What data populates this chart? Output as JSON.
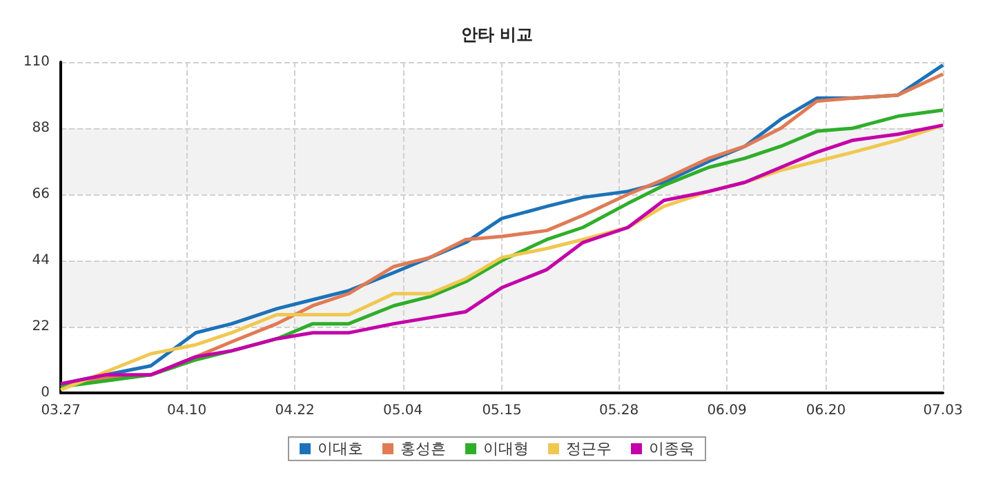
{
  "chart_data": {
    "type": "line",
    "title": "안타 비교",
    "x": [
      "--03-27",
      "--04-01",
      "--04-06",
      "--04-11",
      "--04-15",
      "--04-20",
      "--04-24",
      "--04-28",
      "--05-03",
      "--05-07",
      "--05-11",
      "--05-15",
      "--05-20",
      "--05-24",
      "--05-29",
      "--06-02",
      "--06-07",
      "--06-11",
      "--06-15",
      "--06-19",
      "--06-23",
      "--06-28",
      "--07-03"
    ],
    "series": [
      {
        "name": "이대호",
        "color": "#1c72b8",
        "values": [
          3,
          6,
          9,
          20,
          23,
          28,
          31,
          34,
          40,
          45,
          50,
          58,
          62,
          65,
          67,
          70,
          77,
          82,
          91,
          98,
          98,
          99,
          109
        ]
      },
      {
        "name": "홍성흔",
        "color": "#e07b55",
        "values": [
          2,
          5,
          6,
          12,
          17,
          23,
          29,
          33,
          42,
          45,
          51,
          52,
          54,
          59,
          66,
          71,
          78,
          82,
          88,
          97,
          98,
          99,
          106
        ]
      },
      {
        "name": "이대형",
        "color": "#2fae2a",
        "values": [
          2,
          4,
          6,
          11,
          14,
          18,
          23,
          23,
          29,
          32,
          37,
          44,
          51,
          55,
          63,
          69,
          75,
          78,
          82,
          87,
          88,
          92,
          94
        ]
      },
      {
        "name": "정근우",
        "color": "#f0c850",
        "values": [
          1,
          7,
          13,
          16,
          20,
          26,
          26,
          26,
          33,
          33,
          38,
          45,
          48,
          51,
          55,
          62,
          67,
          70,
          74,
          77,
          80,
          84,
          89
        ]
      },
      {
        "name": "이종욱",
        "color": "#c400a8",
        "values": [
          3,
          6,
          6,
          12,
          14,
          18,
          20,
          20,
          23,
          25,
          27,
          35,
          41,
          50,
          55,
          64,
          67,
          70,
          75,
          80,
          84,
          86,
          89
        ]
      }
    ],
    "xlim": [
      "--03-27",
      "--07-03"
    ],
    "xticks": [
      {
        "value": "--03-27",
        "label": "03.27"
      },
      {
        "value": "--04-10",
        "label": "04.10"
      },
      {
        "value": "--04-22",
        "label": "04.22"
      },
      {
        "value": "--05-04",
        "label": "05.04"
      },
      {
        "value": "--05-15",
        "label": "05.15"
      },
      {
        "value": "--05-28",
        "label": "05.28"
      },
      {
        "value": "--06-09",
        "label": "06.09"
      },
      {
        "value": "--06-20",
        "label": "06.20"
      },
      {
        "value": "--07-03",
        "label": "07.03"
      }
    ],
    "ylim": [
      0,
      110
    ],
    "yticks": [
      0,
      22,
      44,
      66,
      88,
      110
    ],
    "grid": true,
    "legend": "bottom",
    "marker": "none",
    "line_style": "solid"
  }
}
